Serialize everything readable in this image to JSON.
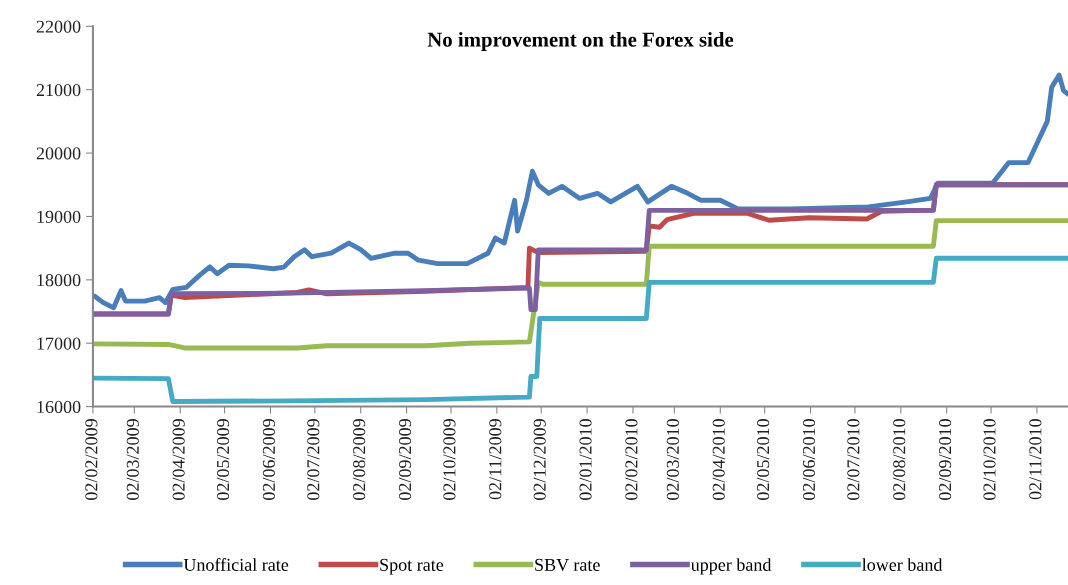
{
  "chart_data": {
    "type": "line",
    "title": "No improvement on the Forex side",
    "ylim": [
      16000,
      22000
    ],
    "yticks": [
      16000,
      17000,
      18000,
      19000,
      20000,
      21000,
      22000
    ],
    "xlim": [
      "2009-02-02",
      "2010-11-23"
    ],
    "xticks": [
      {
        "value": "2009-02-02",
        "label": "02/02/2009"
      },
      {
        "value": "2009-03-02",
        "label": "02/03/2009"
      },
      {
        "value": "2009-04-02",
        "label": "02/04/2009"
      },
      {
        "value": "2009-05-02",
        "label": "02/05/2009"
      },
      {
        "value": "2009-06-02",
        "label": "02/06/2009"
      },
      {
        "value": "2009-07-02",
        "label": "02/07/2009"
      },
      {
        "value": "2009-08-02",
        "label": "02/08/2009"
      },
      {
        "value": "2009-09-02",
        "label": "02/09/2009"
      },
      {
        "value": "2009-10-02",
        "label": "02/10/2009"
      },
      {
        "value": "2009-11-02",
        "label": "02/11/2009"
      },
      {
        "value": "2009-12-02",
        "label": "02/12/2009"
      },
      {
        "value": "2010-01-02",
        "label": "02/01/2010"
      },
      {
        "value": "2010-02-02",
        "label": "02/02/2010"
      },
      {
        "value": "2010-03-02",
        "label": "02/03/2010"
      },
      {
        "value": "2010-04-02",
        "label": "02/04/2010"
      },
      {
        "value": "2010-05-02",
        "label": "02/05/2010"
      },
      {
        "value": "2010-06-02",
        "label": "02/06/2010"
      },
      {
        "value": "2010-07-02",
        "label": "02/07/2010"
      },
      {
        "value": "2010-08-02",
        "label": "02/08/2010"
      },
      {
        "value": "2010-09-02",
        "label": "02/09/2010"
      },
      {
        "value": "2010-10-02",
        "label": "02/10/2010"
      },
      {
        "value": "2010-11-02",
        "label": "02/11/2010"
      }
    ],
    "grid": false,
    "legend": "bottom",
    "marker": "none",
    "line_style": "solid",
    "series": [
      {
        "name": "Unofficial rate",
        "color": "#4a7ebb",
        "x": [
          "2009-02-03",
          "2009-02-09",
          "2009-02-16",
          "2009-02-21",
          "2009-02-24",
          "2009-03-09",
          "2009-03-19",
          "2009-03-23",
          "2009-03-28",
          "2009-04-06",
          "2009-04-15",
          "2009-04-22",
          "2009-04-27",
          "2009-05-05",
          "2009-05-18",
          "2009-06-04",
          "2009-06-11",
          "2009-06-18",
          "2009-06-25",
          "2009-06-30",
          "2009-07-13",
          "2009-07-25",
          "2009-08-02",
          "2009-08-09",
          "2009-08-25",
          "2009-09-03",
          "2009-09-10",
          "2009-09-23",
          "2009-10-13",
          "2009-10-27",
          "2009-11-01",
          "2009-11-07",
          "2009-11-14",
          "2009-11-16",
          "2009-11-22",
          "2009-11-26",
          "2009-11-30",
          "2009-12-07",
          "2009-12-16",
          "2009-12-28",
          "2010-01-09",
          "2010-01-18",
          "2010-02-05",
          "2010-02-12",
          "2010-02-28",
          "2010-03-11",
          "2010-03-20",
          "2010-04-02",
          "2010-04-14",
          "2010-05-19",
          "2010-07-11",
          "2010-08-06",
          "2010-08-22",
          "2010-08-27",
          "2010-10-03",
          "2010-10-14",
          "2010-10-27",
          "2010-11-02",
          "2010-11-09",
          "2010-11-12",
          "2010-11-17",
          "2010-11-20",
          "2010-11-23"
        ],
        "values": [
          17745,
          17640,
          17560,
          17830,
          17665,
          17665,
          17720,
          17640,
          17850,
          17880,
          18070,
          18205,
          18095,
          18230,
          18220,
          18175,
          18200,
          18365,
          18475,
          18365,
          18420,
          18580,
          18475,
          18340,
          18420,
          18420,
          18310,
          18255,
          18255,
          18420,
          18660,
          18580,
          19255,
          18770,
          19255,
          19715,
          19500,
          19365,
          19475,
          19285,
          19365,
          19230,
          19475,
          19230,
          19475,
          19365,
          19255,
          19255,
          19120,
          19120,
          19150,
          19230,
          19285,
          19525,
          19525,
          19850,
          19850,
          20150,
          20500,
          21040,
          21230,
          20985,
          20930
        ]
      },
      {
        "name": "Spot rate",
        "color": "#be4b48",
        "x": [
          "2009-02-02",
          "2009-03-25",
          "2009-03-27",
          "2009-04-05",
          "2009-06-20",
          "2009-06-28",
          "2009-07-10",
          "2009-09-15",
          "2009-11-23",
          "2009-11-24",
          "2009-11-30",
          "2010-02-11",
          "2010-02-13",
          "2010-02-20",
          "2010-02-25",
          "2010-03-15",
          "2010-04-20",
          "2010-05-05",
          "2010-06-01",
          "2010-07-10",
          "2010-07-20",
          "2010-08-24",
          "2010-08-26",
          "2010-11-23"
        ],
        "values": [
          17460,
          17460,
          17760,
          17720,
          17800,
          17840,
          17780,
          17820,
          17880,
          18500,
          18430,
          18450,
          18850,
          18830,
          18950,
          19050,
          19050,
          18940,
          18980,
          18960,
          19080,
          19100,
          19500,
          19500
        ]
      },
      {
        "name": "SBV rate",
        "color": "#98b954",
        "x": [
          "2009-02-02",
          "2009-03-25",
          "2009-04-05",
          "2009-06-20",
          "2009-07-10",
          "2009-09-15",
          "2009-10-15",
          "2009-11-24",
          "2009-11-30",
          "2009-12-03",
          "2010-02-11",
          "2010-02-13",
          "2010-08-24",
          "2010-08-26",
          "2010-11-23"
        ],
        "values": [
          16990,
          16980,
          16925,
          16925,
          16960,
          16960,
          17000,
          17020,
          17960,
          17930,
          17930,
          18530,
          18530,
          18935,
          18935
        ]
      },
      {
        "name": "upper band",
        "color": "#7d60a0",
        "x": [
          "2009-02-02",
          "2009-03-25",
          "2009-03-27",
          "2009-06-15",
          "2009-09-15",
          "2009-11-24",
          "2009-11-25",
          "2009-11-28",
          "2009-11-30",
          "2010-02-11",
          "2010-02-13",
          "2010-08-24",
          "2010-08-26",
          "2010-11-23"
        ],
        "values": [
          17460,
          17460,
          17780,
          17790,
          17830,
          17870,
          17530,
          17530,
          18470,
          18470,
          19095,
          19095,
          19500,
          19500
        ]
      },
      {
        "name": "lower band",
        "color": "#46aac5",
        "x": [
          "2009-02-02",
          "2009-03-25",
          "2009-03-28",
          "2009-06-15",
          "2009-09-15",
          "2009-11-24",
          "2009-11-25",
          "2009-11-29",
          "2009-12-01",
          "2010-02-11",
          "2010-02-13",
          "2010-08-24",
          "2010-08-26",
          "2010-11-23"
        ],
        "values": [
          16450,
          16440,
          16080,
          16090,
          16110,
          16150,
          16475,
          16475,
          17390,
          17390,
          17960,
          17960,
          18340,
          18340
        ]
      }
    ]
  }
}
